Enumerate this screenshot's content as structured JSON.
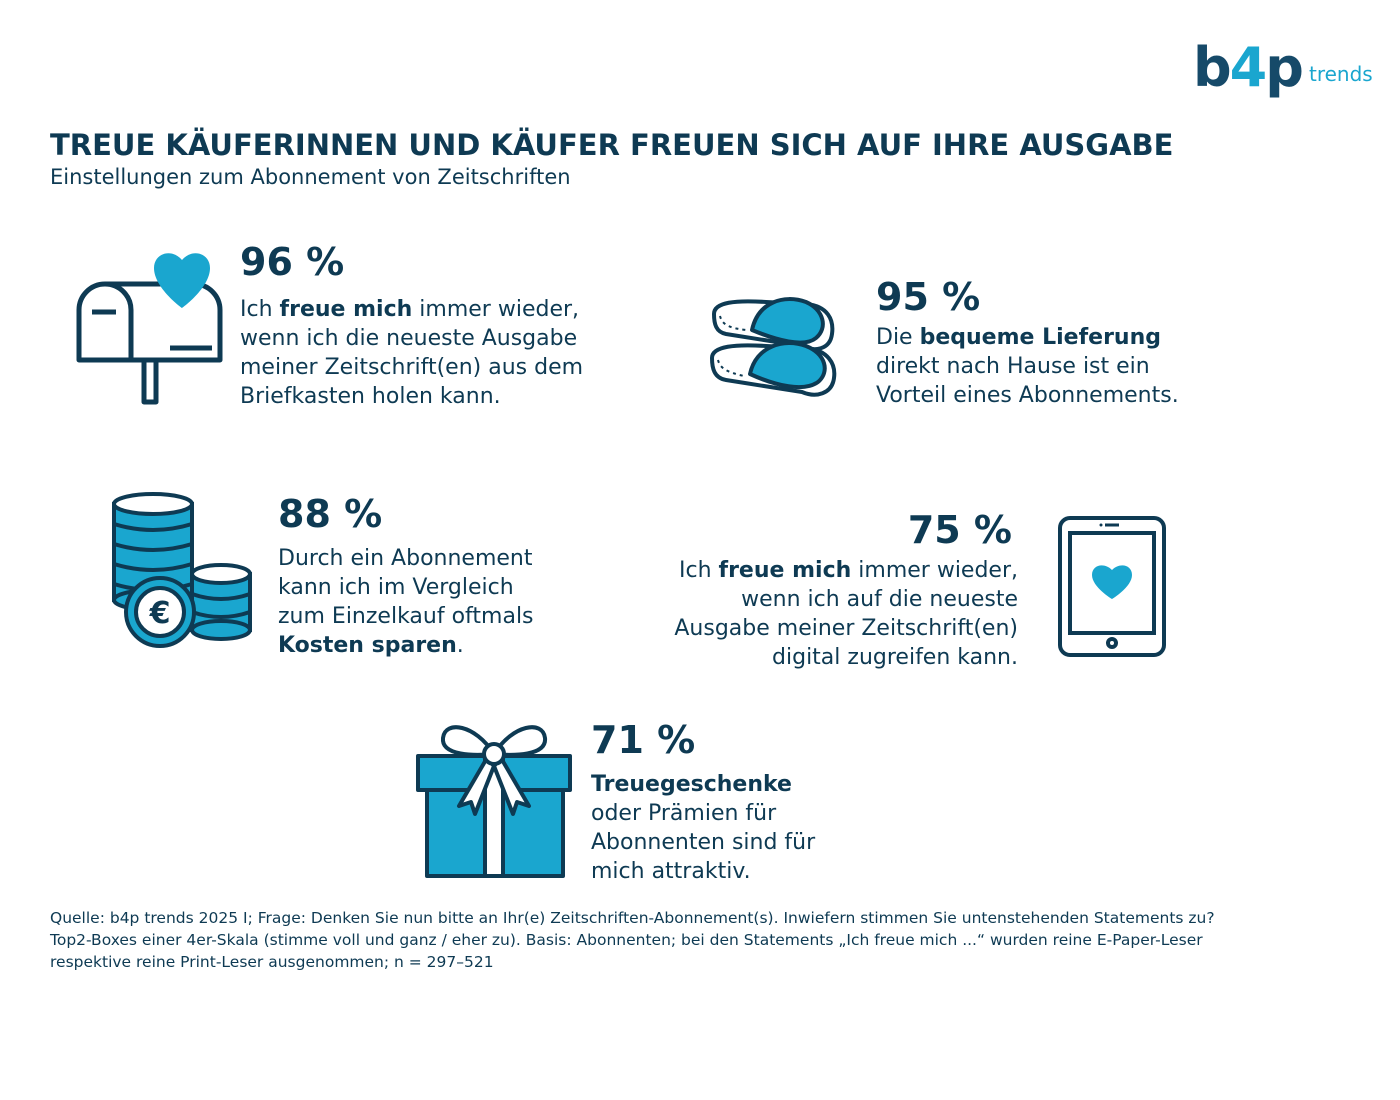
{
  "logo": {
    "main_b": "b",
    "main_4": "4",
    "main_p": "p",
    "sub": "trends"
  },
  "title": "TREUE KÄUFERINNEN UND KÄUFER FREUEN SICH AUF IHRE AUSGABE",
  "subtitle": "Einstellungen zum Abonnement von Zeitschriften",
  "colors": {
    "navy": "#0e3a53",
    "accent": "#1aa6cf"
  },
  "stats": [
    {
      "icon": "mailbox-heart-icon",
      "percent": "96 %",
      "lines": [
        [
          "Ich ",
          "freue mich",
          " immer wieder,"
        ],
        [
          "wenn ich die neueste Ausgabe"
        ],
        [
          "meiner Zeitschrift(en) aus dem"
        ],
        [
          "Briefkasten holen kann."
        ]
      ]
    },
    {
      "icon": "slippers-icon",
      "percent": "95 %",
      "lines": [
        [
          "Die ",
          "bequeme Lieferung"
        ],
        [
          "direkt nach Hause ist ein"
        ],
        [
          "Vorteil eines Abonnements."
        ]
      ]
    },
    {
      "icon": "coins-euro-icon",
      "percent": "88 %",
      "lines": [
        [
          "Durch ein Abonnement"
        ],
        [
          "kann ich im Vergleich"
        ],
        [
          "zum Einzelkauf oftmals"
        ],
        [
          "",
          "Kosten sparen",
          "."
        ]
      ]
    },
    {
      "icon": "tablet-heart-icon",
      "percent": "75 %",
      "lines": [
        [
          "Ich ",
          "freue mich",
          " immer wieder,"
        ],
        [
          "wenn ich auf die neueste"
        ],
        [
          "Ausgabe meiner Zeitschrift(en)"
        ],
        [
          "digital zugreifen kann."
        ]
      ]
    },
    {
      "icon": "gift-icon",
      "percent": "71 %",
      "lines": [
        [
          "",
          "Treuegeschenke"
        ],
        [
          "oder Prämien für"
        ],
        [
          "Abonnenten sind für"
        ],
        [
          "mich attraktiv."
        ]
      ]
    }
  ],
  "footer": [
    "Quelle: b4p trends 2025 I; Frage: Denken Sie nun bitte an Ihr(e) Zeitschriften-Abonnement(s). Inwiefern stimmen Sie untenstehenden Statements zu?",
    "Top2-Boxes einer 4er-Skala (stimme voll und ganz / eher zu). Basis: Abonnenten; bei den Statements „Ich freue mich ...“ wurden reine E-Paper-Leser",
    "respektive reine Print-Leser ausgenommen; n = 297–521"
  ]
}
